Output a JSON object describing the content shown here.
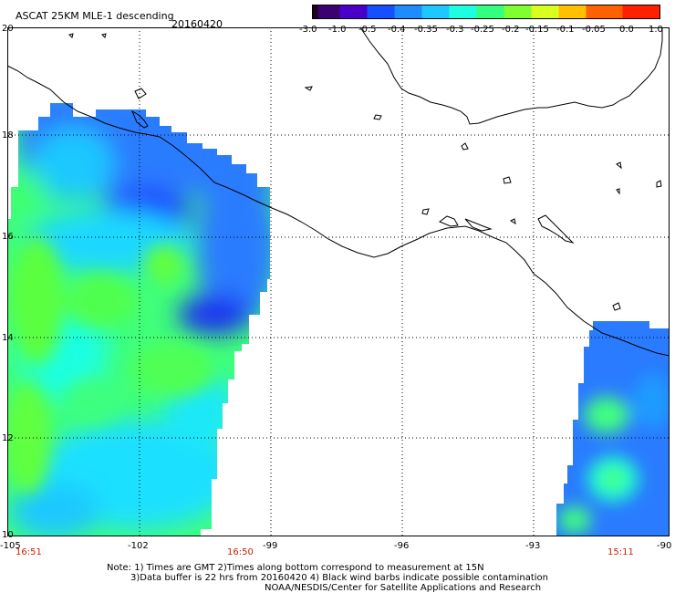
{
  "header": {
    "title": "ASCAT 25KM MLE-1 descending",
    "date": "20160420"
  },
  "colorbar": {
    "tick_labels": [
      "-3.0",
      "-1.0",
      "-0.5",
      "-0.4",
      "-0.35",
      "-0.3",
      "-0.25",
      "-0.2",
      "-0.15",
      "-0.1",
      "-0.05",
      "0.0",
      "1.0"
    ],
    "colors": [
      "#200020",
      "#3c0070",
      "#4a00c8",
      "#1450ff",
      "#1e8cff",
      "#1ec8ff",
      "#1effe0",
      "#30ff80",
      "#80ff30",
      "#d8ff20",
      "#ffc000",
      "#ff6000",
      "#ff2000"
    ]
  },
  "map": {
    "lat_labels": [
      "20",
      "18",
      "16",
      "14",
      "12",
      "10"
    ],
    "lon_labels": [
      "-105",
      "-102",
      "-99",
      "-96",
      "-93",
      "-90"
    ],
    "time_labels": [
      "16:51",
      "16:50",
      "15:11"
    ],
    "time_color": "#cc2200"
  },
  "footer": {
    "note_line1": "Note: 1) Times are GMT 2)Times along bottom correspond to measurement at 15N",
    "note_line2": "3)Data buffer is 22 hrs from 20160420 4) Black wind barbs indicate possible contamination",
    "credit": "NOAA/NESDIS/Center for Satellite Applications and Research"
  }
}
